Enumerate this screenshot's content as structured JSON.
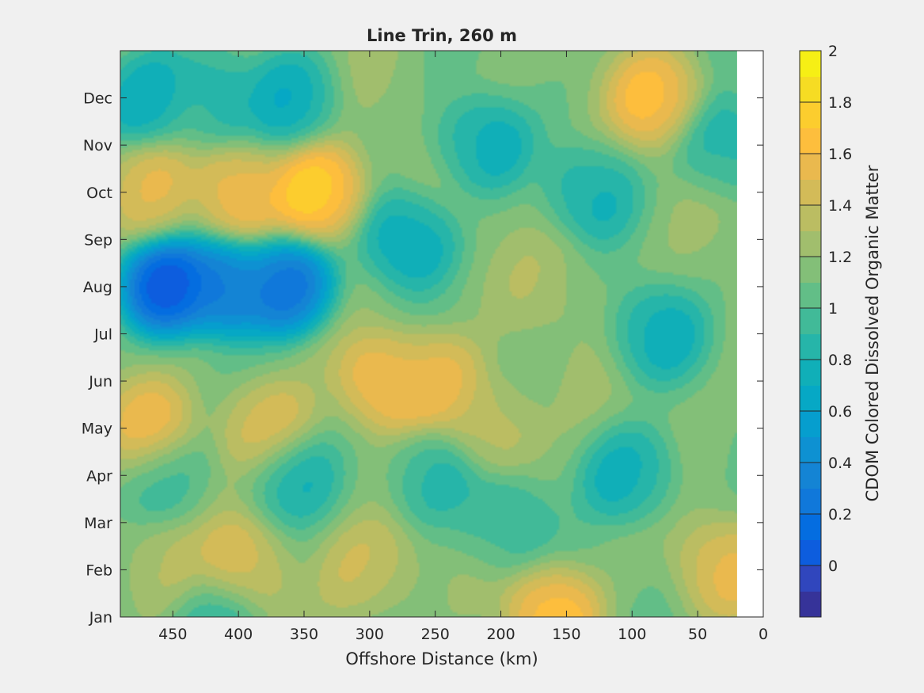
{
  "chart_data": {
    "type": "heatmap",
    "style": "filled-contour",
    "title": "Line Trin, 260 m",
    "xlabel": "Offshore Distance (km)",
    "ylabel": "",
    "x_direction": "reversed",
    "xlim": [
      0,
      490
    ],
    "x_ticks": [
      450,
      400,
      350,
      300,
      250,
      200,
      150,
      100,
      50,
      0
    ],
    "y_ticks": [
      "Jan",
      "Feb",
      "Mar",
      "Apr",
      "May",
      "Jun",
      "Jul",
      "Aug",
      "Sep",
      "Oct",
      "Nov",
      "Dec"
    ],
    "data_x_extent": [
      20,
      490
    ],
    "colorbar": {
      "label": "CDOM Colored Dissolved Organic Matter",
      "range": [
        -0.2,
        2.0
      ],
      "ticks": [
        "0",
        "0.2",
        "0.4",
        "0.6",
        "0.8",
        "1",
        "1.2",
        "1.4",
        "1.6",
        "1.8",
        "2"
      ],
      "levels": 22,
      "colormap": "parula"
    },
    "features": [
      {
        "x": 455,
        "month": "Aug",
        "value": -0.15
      },
      {
        "x": 410,
        "month": "Aug",
        "value": 0.05
      },
      {
        "x": 365,
        "month": "Aug",
        "value": 0.0
      },
      {
        "x": 340,
        "month": "Oct",
        "value": 1.95
      },
      {
        "x": 400,
        "month": "Oct",
        "value": 1.65
      },
      {
        "x": 470,
        "month": "Oct",
        "value": 1.55
      },
      {
        "x": 470,
        "month": "Dec",
        "value": 0.6
      },
      {
        "x": 420,
        "month": "Dec",
        "value": 0.75
      },
      {
        "x": 360,
        "month": "Dec",
        "value": 0.7
      },
      {
        "x": 270,
        "month": "Sep",
        "value": 0.6
      },
      {
        "x": 215,
        "month": "Nov",
        "value": 0.65
      },
      {
        "x": 80,
        "month": "Dec",
        "value": 1.7
      },
      {
        "x": 30,
        "month": "Nov",
        "value": 0.75
      },
      {
        "x": 470,
        "month": "May",
        "value": 1.6
      },
      {
        "x": 380,
        "month": "May",
        "value": 1.6
      },
      {
        "x": 285,
        "month": "Jun",
        "value": 1.7
      },
      {
        "x": 250,
        "month": "Jun",
        "value": 1.65
      },
      {
        "x": 210,
        "month": "May",
        "value": 1.5
      },
      {
        "x": 160,
        "month": "Jan",
        "value": 1.75
      },
      {
        "x": 400,
        "month": "Feb",
        "value": 1.5
      },
      {
        "x": 300,
        "month": "Feb",
        "value": 1.5
      },
      {
        "x": 250,
        "month": "Apr",
        "value": 0.75
      },
      {
        "x": 200,
        "month": "Mar",
        "value": 0.8
      },
      {
        "x": 80,
        "month": "Jul",
        "value": 0.7
      },
      {
        "x": 100,
        "month": "Apr",
        "value": 0.65
      },
      {
        "x": 360,
        "month": "Apr",
        "value": 0.8
      },
      {
        "x": 460,
        "month": "Apr",
        "value": 0.9
      },
      {
        "x": 460,
        "month": "Feb",
        "value": 1.4
      },
      {
        "x": 130,
        "month": "Oct",
        "value": 0.75
      },
      {
        "x": 420,
        "month": "Jan",
        "value": 0.85
      },
      {
        "x": 30,
        "month": "Feb",
        "value": 1.55
      },
      {
        "x": 160,
        "month": "Aug",
        "value": 1.25
      }
    ]
  }
}
